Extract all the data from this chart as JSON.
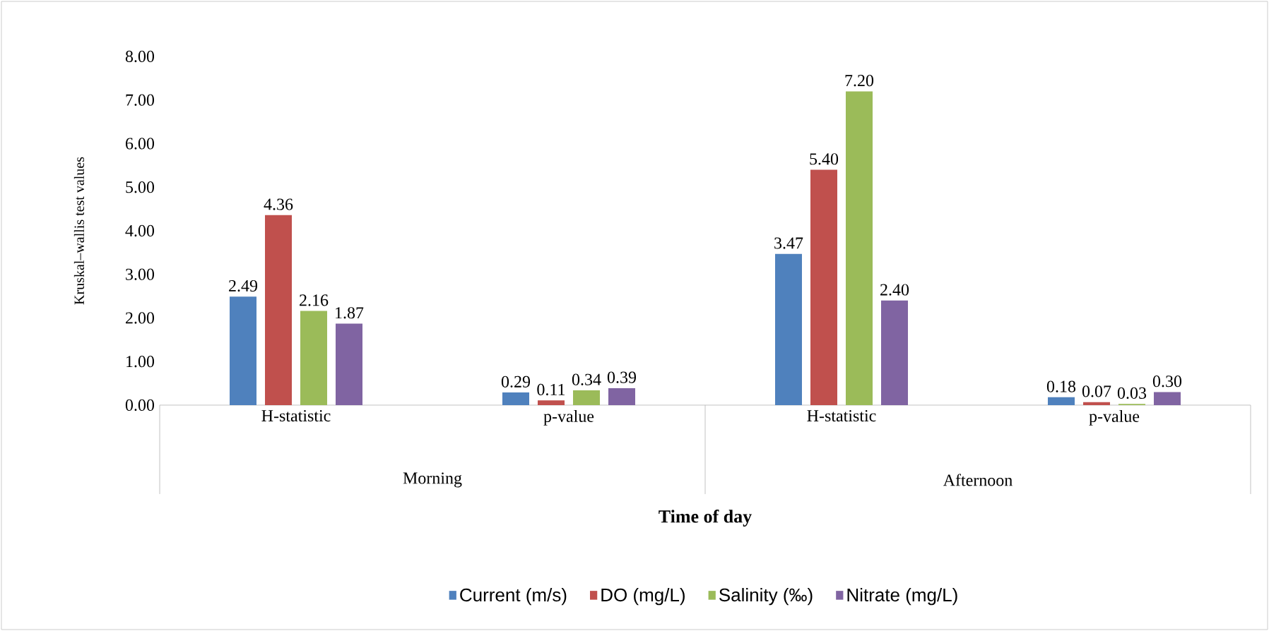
{
  "chart_data": {
    "type": "bar",
    "ylabel": "Kruskal–wallis  test values",
    "xlabel": "Time of day",
    "categories": [
      "H-statistic",
      "p-value",
      "H-statistic",
      "p-value"
    ],
    "annotations": [
      "Morning",
      "Afternoon"
    ],
    "series": [
      {
        "name": "Current (m/s)",
        "color": "#4f81bd",
        "values": [
          2.49,
          0.29,
          3.47,
          0.18
        ],
        "value_labels": [
          "2.49",
          "0.29",
          "3.47",
          "0.18"
        ]
      },
      {
        "name": "DO (mg/L)",
        "color": "#c0504d",
        "values": [
          4.36,
          0.11,
          5.4,
          0.07
        ],
        "value_labels": [
          "4.36",
          "0.11",
          "5.40",
          "0.07"
        ]
      },
      {
        "name": "Salinity  (‰)",
        "color": "#9bbb59",
        "values": [
          2.16,
          0.34,
          7.2,
          0.03
        ],
        "value_labels": [
          "2.16",
          "0.34",
          "7.20",
          "0.03"
        ]
      },
      {
        "name": "Nitrate (mg/L)",
        "color": "#8064a2",
        "values": [
          1.87,
          0.39,
          2.4,
          0.3
        ],
        "value_labels": [
          "1.87",
          "0.39",
          "2.40",
          "0.30"
        ]
      }
    ],
    "ylim": [
      0,
      8
    ],
    "yticks": [
      {
        "value": 0,
        "label": "0.00"
      },
      {
        "value": 1,
        "label": "1.00"
      },
      {
        "value": 2,
        "label": "2.00"
      },
      {
        "value": 3,
        "label": "3.00"
      },
      {
        "value": 4,
        "label": "4.00"
      },
      {
        "value": 5,
        "label": "5.00"
      },
      {
        "value": 6,
        "label": "6.00"
      },
      {
        "value": 7,
        "label": "7.00"
      },
      {
        "value": 8,
        "label": "8.00"
      }
    ],
    "legend": "bottom"
  }
}
